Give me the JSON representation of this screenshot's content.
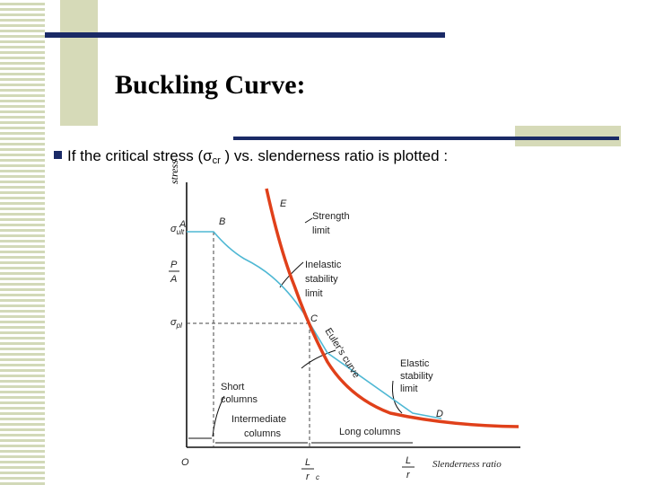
{
  "slide": {
    "title": "Buckling Curve:",
    "bullet_text": "If the critical stress (σ",
    "bullet_sub": "cr",
    "bullet_rest": " ) vs. slenderness ratio is plotted :",
    "stress_label": "stress"
  },
  "diagram": {
    "labels": {
      "sigma_ult": "σ",
      "sigma_ult_sub": "ult",
      "p": "P",
      "a": "A",
      "sigma_pl": "σ",
      "sigma_pl_sub": "pl",
      "point_a": "A",
      "point_b": "B",
      "point_c": "C",
      "point_d": "D",
      "point_e": "E",
      "origin": "O",
      "strength_1": "Strength",
      "strength_2": "limit",
      "inelastic_1": "Inelastic",
      "inelastic_2": "stability",
      "inelastic_3": "limit",
      "eulers_curve": "Euler's curve",
      "elastic_1": "Elastic",
      "elastic_2": "stability",
      "elastic_3": "limit",
      "short_1": "Short",
      "short_2": "columns",
      "intermediate_1": "Intermediate",
      "intermediate_2": "columns",
      "long_columns": "Long columns",
      "lr_c_l": "L",
      "lr_c_r": "r",
      "lr_c_sub": "c",
      "lr_l": "L",
      "lr_r": "r",
      "slenderness_ratio": "Slenderness ratio"
    },
    "colors": {
      "euler_curve": "#e0401a",
      "stability_curve": "#4fb8d4",
      "axes": "#111111",
      "dashed": "#444444"
    }
  }
}
